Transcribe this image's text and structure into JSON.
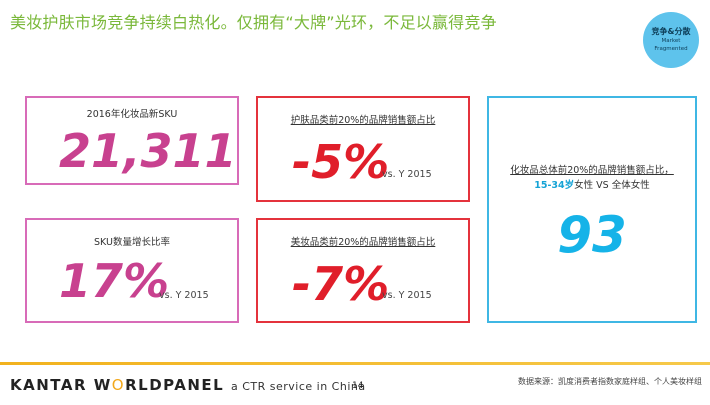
{
  "title": "美妆护肤市场竞争持续白热化。仅拥有“大牌”光环，不足以赢得竞争",
  "badge": {
    "line1": "竞争&分散",
    "line2": "Market",
    "line3": "Fragmented"
  },
  "cards": {
    "new_sku": {
      "label": "2016年化妆品新SKU",
      "value": "21,311"
    },
    "skincare_top20": {
      "label": "护肤品类前20%的品牌销售额占比",
      "value": "-5%",
      "compare": "vs. Y 2015"
    },
    "sku_growth": {
      "label": "SKU数量增长比率",
      "value": "17%",
      "compare": "vs. Y 2015"
    },
    "makeup_top20": {
      "label": "美妆品类前20%的品牌销售额占比",
      "value": "-7%",
      "compare": "vs. Y 2015"
    },
    "cosmetics_women": {
      "label_line1": "化妆品总体前20%的品牌销售额占比，",
      "label_highlight": "15-34岁",
      "label_rest": "女性 VS 全体女性",
      "value": "93"
    }
  },
  "footer": {
    "logo_a": "KANTAR W",
    "logo_o": "O",
    "logo_b": "RLDPANEL",
    "logo_sub": "a CTR service in China",
    "page": "14",
    "source": "数据来源：凯度消费者指数家庭样组、个人美妆样组"
  },
  "colors": {
    "title": "#7ab83a",
    "pink": "#d86bb8",
    "red": "#e4323c",
    "blue": "#3fb7e4"
  }
}
